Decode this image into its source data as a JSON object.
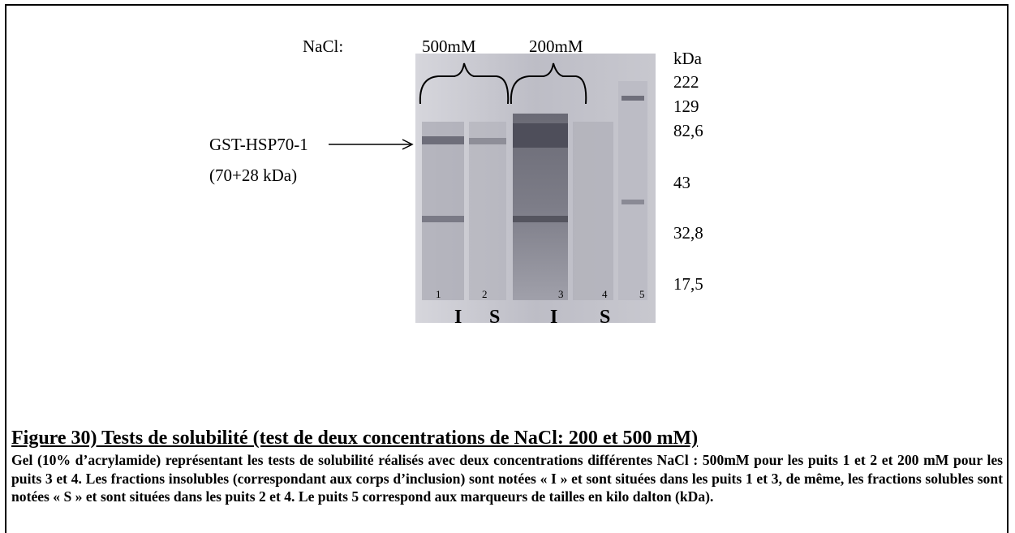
{
  "figure": {
    "salt_label": "NaCl:",
    "concentrations": [
      "500mM",
      "200mM"
    ],
    "unit_label": "kDa",
    "markers": [
      "222",
      "129",
      "82,6",
      "43",
      "32,8",
      "17,5"
    ],
    "protein": {
      "name": "GST-HSP70-1",
      "size": "(70+28 kDa)"
    },
    "lane_numbers": [
      "1",
      "2",
      "3",
      "4",
      "5"
    ],
    "fractions": [
      "I",
      "S",
      "I",
      "S"
    ]
  },
  "caption": {
    "title": "Figure 30) Tests de solubilité (test de deux concentrations de NaCl: 200 et 500 mM)",
    "body": "Gel (10% d’acrylamide) représentant les tests de solubilité réalisés avec deux concentrations différentes NaCl : 500mM pour les puits 1 et 2 et 200 mM pour les puits 3 et 4. Les fractions insolubles (correspondant aux corps d’inclusion) sont notées « I » et sont situées dans les puits 1 et 3, de même, les fractions solubles sont notées « S » et sont situées dans les puits 2 et 4. Le puits 5 correspond aux marqueurs de tailles en kilo dalton (kDa)."
  }
}
